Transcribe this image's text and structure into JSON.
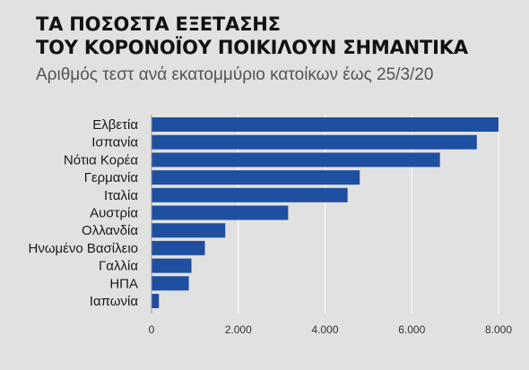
{
  "header": {
    "title_line1": "ΤΑ ΠΟΣΟΣΤΑ ΕΞΕΤΑΣΗΣ",
    "title_line2": "ΤΟΥ ΚΟΡΟΝΟΪΟΥ ΠΟΙΚΙΛΟΥΝ ΣΗΜΑΝΤΙΚΑ",
    "subtitle": "Αριθμός τεστ ανά εκατομμύριο κατοίκων έως 25/3/20"
  },
  "chart_data": {
    "type": "bar",
    "orientation": "horizontal",
    "categories": [
      "Ελβετία",
      "Ισπανία",
      "Νότια Κορέα",
      "Γερμανία",
      "Ιταλία",
      "Αυστρία",
      "Ολλανδία",
      "Ηνωμένο Βασίλειο",
      "Γαλλία",
      "ΗΠΑ",
      "Ιαπωνία"
    ],
    "values": [
      8000,
      7500,
      6650,
      4800,
      4520,
      3150,
      1700,
      1230,
      920,
      860,
      170
    ],
    "xlim": [
      0,
      8000
    ],
    "xticks": [
      0,
      2000,
      4000,
      6000,
      8000
    ],
    "xtick_labels": [
      "0",
      "2.000",
      "4.000",
      "6.000",
      "8.000"
    ],
    "bar_color": "#1f4fa0",
    "grid": true,
    "gridline_color": "#ffffff"
  }
}
